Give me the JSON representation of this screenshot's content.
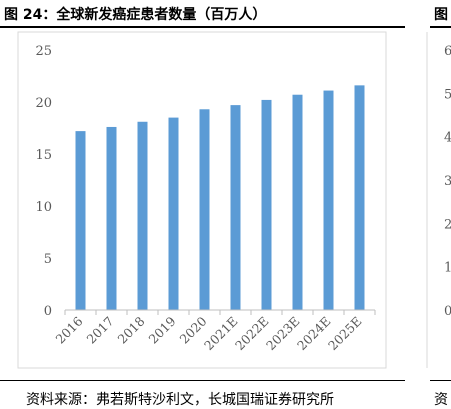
{
  "figure": {
    "title": "图 24：全球新发癌症患者数量（百万人）",
    "right_title": "图",
    "source": "资料来源：弗若斯特沙利文，长城国瑞证券研究所",
    "right_source": "资"
  },
  "right_panel": {
    "tick_labels": [
      "6",
      "5",
      "4",
      "3",
      "2",
      "1",
      "0"
    ]
  },
  "colors": {
    "bar": "#5b9bd5",
    "axis": "#bfbfbf",
    "text": "#595959"
  },
  "chart_data": {
    "type": "bar",
    "categories": [
      "2016",
      "2017",
      "2018",
      "2019",
      "2020",
      "2021E",
      "2022E",
      "2023E",
      "2024E",
      "2025E"
    ],
    "values": [
      17.2,
      17.6,
      18.1,
      18.5,
      19.3,
      19.7,
      20.2,
      20.7,
      21.1,
      21.6
    ],
    "title": "",
    "xlabel": "",
    "ylabel": "",
    "ylim": [
      0,
      25
    ],
    "yticks": [
      "0",
      "5",
      "10",
      "15",
      "20",
      "25"
    ],
    "grid": false
  }
}
